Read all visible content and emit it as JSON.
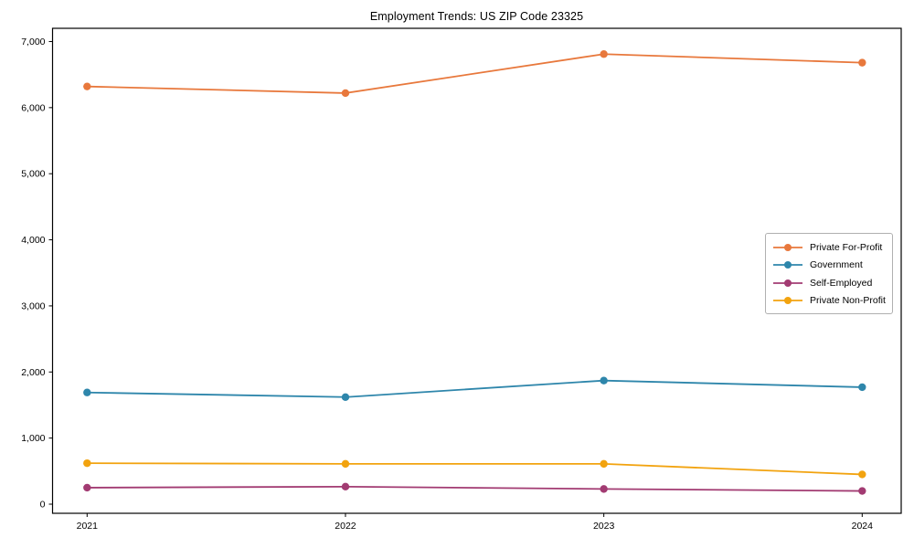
{
  "chart_data": {
    "type": "line",
    "title": "Employment Trends: US ZIP Code 23325",
    "xlabel": "",
    "ylabel": "",
    "categories": [
      "2021",
      "2022",
      "2023",
      "2024"
    ],
    "series": [
      {
        "name": "Private For-Profit",
        "color": "#E8783C",
        "values": [
          6320,
          6220,
          6810,
          6680
        ]
      },
      {
        "name": "Government",
        "color": "#2E86AB",
        "values": [
          1690,
          1620,
          1870,
          1770
        ]
      },
      {
        "name": "Self-Employed",
        "color": "#A23B72",
        "values": [
          250,
          265,
          230,
          200
        ]
      },
      {
        "name": "Private Non-Profit",
        "color": "#F2A30F",
        "values": [
          620,
          610,
          610,
          450
        ]
      }
    ],
    "yticks": [
      {
        "value": 0,
        "label": "0"
      },
      {
        "value": 1000,
        "label": "1,000"
      },
      {
        "value": 2000,
        "label": "2,000"
      },
      {
        "value": 3000,
        "label": "3,000"
      },
      {
        "value": 4000,
        "label": "4,000"
      },
      {
        "value": 5000,
        "label": "5,000"
      },
      {
        "value": 6000,
        "label": "6,000"
      },
      {
        "value": 7000,
        "label": "7,000"
      }
    ],
    "ylim": [
      -138,
      7200
    ],
    "grid": false,
    "legend_position": "center-right",
    "frame_color": "#000000"
  }
}
